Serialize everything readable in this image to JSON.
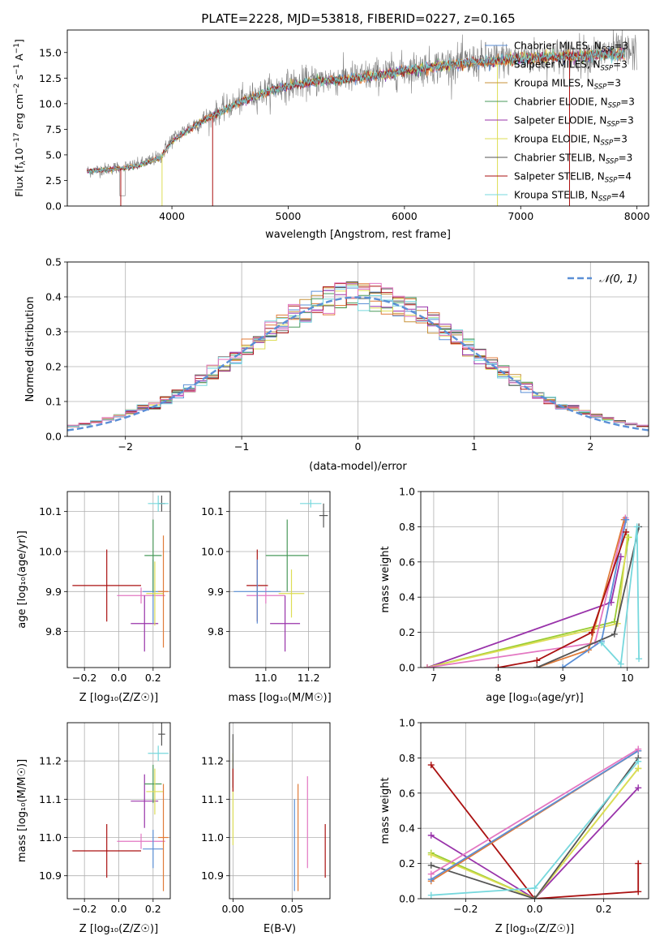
{
  "figure_title": "PLATE=2228, MJD=53818, FIBERID=0227, z=0.165",
  "colors": {
    "chabrier_miles": "#5b8fd6",
    "salpeter_miles": "#e07b39",
    "kroupa_miles": "#e07b39",
    "chabrier_elodie": "#4a9a5b",
    "salpeter_elodie": "#9933aa",
    "kroupa_elodie": "#dddd55",
    "chabrier_stelib": "#555555",
    "salpeter_stelib": "#aa1111",
    "kroupa_stelib": "#77d8dd",
    "data": "#808080",
    "extra_pink": "#e377c2",
    "extra_olive": "#9acd32"
  },
  "chart_data": [
    {
      "id": "spectrum",
      "type": "line",
      "xlabel": "wavelength [Angstrom, rest frame]",
      "ylabel": "Flux [f_λ 10^-17 erg cm^-2 s^-1 A^-1]",
      "xlim": [
        3100,
        8100
      ],
      "ylim": [
        0,
        17.2
      ],
      "xticks": [
        4000,
        5000,
        6000,
        7000,
        8000
      ],
      "yticks": [
        0.0,
        2.5,
        5.0,
        7.5,
        10.0,
        12.5,
        15.0
      ],
      "grid": false,
      "legend_position": "top-right",
      "legend": [
        {
          "label": "Chabrier MILES, N",
          "sub": "SSP",
          "tail": "=3",
          "color": "#5b8fd6"
        },
        {
          "label": "Salpeter MILES, N",
          "sub": "SSP",
          "tail": "=3",
          "color": "#e07b39"
        },
        {
          "label": "Kroupa MILES, N",
          "sub": "SSP",
          "tail": "=3",
          "color": "#c8923a"
        },
        {
          "label": "Chabrier ELODIE, N",
          "sub": "SSP",
          "tail": "=3",
          "color": "#4a9a5b"
        },
        {
          "label": "Salpeter ELODIE, N",
          "sub": "SSP",
          "tail": "=3",
          "color": "#9933aa"
        },
        {
          "label": "Kroupa ELODIE, N",
          "sub": "SSP",
          "tail": "=3",
          "color": "#dddd55"
        },
        {
          "label": "Chabrier STELIB, N",
          "sub": "SSP",
          "tail": "=3",
          "color": "#555555"
        },
        {
          "label": "Salpeter STELIB, N",
          "sub": "SSP",
          "tail": "=4",
          "color": "#aa1111"
        },
        {
          "label": "Kroupa STELIB, N",
          "sub": "SSP",
          "tail": "=4",
          "color": "#77d8dd"
        }
      ],
      "series": [
        {
          "role": "data",
          "x_range": [
            3270,
            8000
          ],
          "continuum": [
            [
              3270,
              3.4
            ],
            [
              3500,
              3.7
            ],
            [
              3700,
              4.0
            ],
            [
              3900,
              4.8
            ],
            [
              4000,
              6.5
            ],
            [
              4200,
              8.0
            ],
            [
              4400,
              9.2
            ],
            [
              4600,
              10.3
            ],
            [
              4800,
              11.2
            ],
            [
              5000,
              11.8
            ],
            [
              5200,
              12.2
            ],
            [
              5400,
              12.4
            ],
            [
              5600,
              12.6
            ],
            [
              5800,
              12.9
            ],
            [
              6000,
              13.3
            ],
            [
              6200,
              13.6
            ],
            [
              6400,
              13.9
            ],
            [
              6600,
              14.1
            ],
            [
              6800,
              14.3
            ],
            [
              7000,
              14.5
            ],
            [
              7200,
              14.6
            ],
            [
              7400,
              14.6
            ],
            [
              7600,
              14.8
            ],
            [
              7800,
              15.0
            ],
            [
              8000,
              15.0
            ]
          ]
        },
        {
          "role": "model",
          "x_range": [
            3270,
            7900
          ],
          "continuum": [
            [
              3270,
              3.4
            ],
            [
              3500,
              3.6
            ],
            [
              3700,
              3.9
            ],
            [
              3900,
              4.7
            ],
            [
              4000,
              6.3
            ],
            [
              4200,
              7.9
            ],
            [
              4400,
              9.1
            ],
            [
              4600,
              10.2
            ],
            [
              4800,
              11.1
            ],
            [
              5000,
              11.7
            ],
            [
              5200,
              12.1
            ],
            [
              5400,
              12.3
            ],
            [
              5600,
              12.5
            ],
            [
              5800,
              12.8
            ],
            [
              6000,
              13.2
            ],
            [
              6200,
              13.5
            ],
            [
              6400,
              13.8
            ],
            [
              6600,
              14.0
            ],
            [
              6800,
              14.2
            ],
            [
              7000,
              14.4
            ],
            [
              7200,
              14.5
            ],
            [
              7400,
              14.6
            ],
            [
              7600,
              14.7
            ],
            [
              7900,
              14.9
            ]
          ]
        }
      ]
    },
    {
      "id": "residual-histogram",
      "type": "histogram",
      "xlabel": "(data-model)/error",
      "ylabel": "Normed distribution",
      "xlim": [
        -2.5,
        2.5
      ],
      "ylim": [
        0,
        0.5
      ],
      "xticks": [
        -2,
        -1,
        0,
        1,
        2
      ],
      "yticks": [
        0.0,
        0.1,
        0.2,
        0.3,
        0.4,
        0.5
      ],
      "grid": true,
      "legend_position": "top-right",
      "legend_label": "𝒩(0, 1)",
      "bin_width": 0.1,
      "curve": {
        "name": "N(0,1)",
        "mean": 0,
        "sigma": 1
      }
    },
    {
      "id": "age-vs-Z",
      "type": "errorbar",
      "xlabel": "Z [log₁₀(Z/Z☉)]",
      "ylabel": "age  [log₁₀(age/yr)]",
      "xlim": [
        -0.3,
        0.3
      ],
      "ylim": [
        9.71,
        10.15
      ],
      "xticks": [
        -0.2,
        0.0,
        0.2
      ],
      "yticks": [
        9.8,
        9.9,
        10.0,
        10.1
      ],
      "grid": true,
      "points": [
        {
          "x": -0.07,
          "xerr": 0.2,
          "y": 9.915,
          "yerr": 0.09,
          "color": "#aa1111"
        },
        {
          "x": 0.13,
          "xerr": 0.14,
          "y": 9.89,
          "yerr": 0.02,
          "color": "#e377c2"
        },
        {
          "x": 0.15,
          "xerr": 0.08,
          "y": 9.82,
          "yerr": 0.07,
          "color": "#9933aa"
        },
        {
          "x": 0.2,
          "xerr": 0.06,
          "y": 9.9,
          "yerr": 0.08,
          "color": "#5b8fd6"
        },
        {
          "x": 0.2,
          "xerr": 0.05,
          "y": 9.99,
          "yerr": 0.09,
          "color": "#4a9a5b"
        },
        {
          "x": 0.21,
          "xerr": 0.05,
          "y": 9.895,
          "yerr": 0.08,
          "color": "#dddd55"
        },
        {
          "x": 0.26,
          "xerr": 0.03,
          "y": 9.9,
          "yerr": 0.14,
          "color": "#e07b39"
        },
        {
          "x": 0.25,
          "xerr": 0.02,
          "y": 10.12,
          "yerr": 0.02,
          "color": "#555555"
        },
        {
          "x": 0.23,
          "xerr": 0.06,
          "y": 10.12,
          "yerr": 0.02,
          "color": "#77d8dd"
        }
      ]
    },
    {
      "id": "age-vs-mass",
      "type": "errorbar",
      "xlabel": "mass [log₁₀(M/M☉)]",
      "ylabel": "",
      "xlim": [
        10.83,
        11.3
      ],
      "ylim": [
        9.71,
        10.15
      ],
      "xticks": [
        11.0,
        11.2
      ],
      "yticks": [
        9.8,
        9.9,
        10.0,
        10.1
      ],
      "grid": true,
      "points": [
        {
          "x": 10.96,
          "xerr": 0.05,
          "y": 9.915,
          "yerr": 0.09,
          "color": "#aa1111"
        },
        {
          "x": 11.0,
          "xerr": 0.09,
          "y": 9.89,
          "yerr": 0.02,
          "color": "#e377c2"
        },
        {
          "x": 11.09,
          "xerr": 0.07,
          "y": 9.82,
          "yerr": 0.07,
          "color": "#9933aa"
        },
        {
          "x": 10.96,
          "xerr": 0.11,
          "y": 9.9,
          "yerr": 0.08,
          "color": "#5b8fd6"
        },
        {
          "x": 11.1,
          "xerr": 0.1,
          "y": 9.99,
          "yerr": 0.09,
          "color": "#4a9a5b"
        },
        {
          "x": 11.12,
          "xerr": 0.06,
          "y": 9.895,
          "yerr": 0.06,
          "color": "#dddd55"
        },
        {
          "x": 11.27,
          "xerr": 0.02,
          "y": 10.09,
          "yerr": 0.03,
          "color": "#555555"
        },
        {
          "x": 11.21,
          "xerr": 0.05,
          "y": 10.12,
          "yerr": 0.01,
          "color": "#77d8dd"
        }
      ]
    },
    {
      "id": "weight-vs-age",
      "type": "line",
      "xlabel": "age  [log₁₀(age/yr)]",
      "ylabel": "mass weight",
      "xlim": [
        6.8,
        10.33
      ],
      "ylim": [
        0,
        1.0
      ],
      "xticks": [
        7,
        8,
        9,
        10
      ],
      "yticks": [
        0.0,
        0.2,
        0.4,
        0.6,
        0.8,
        1.0
      ],
      "grid": true,
      "series": [
        {
          "color": "#9933aa",
          "points": [
            [
              6.9,
              0.0
            ],
            [
              9.75,
              0.37
            ],
            [
              9.9,
              0.63
            ]
          ]
        },
        {
          "color": "#9acd32",
          "points": [
            [
              6.9,
              0.0
            ],
            [
              9.8,
              0.26
            ],
            [
              10.02,
              0.74
            ]
          ]
        },
        {
          "color": "#dddd55",
          "points": [
            [
              6.9,
              0.0
            ],
            [
              9.85,
              0.25
            ],
            [
              10.0,
              0.74
            ]
          ]
        },
        {
          "color": "#e377c2",
          "points": [
            [
              6.9,
              0.0
            ],
            [
              9.5,
              0.14
            ],
            [
              9.97,
              0.85
            ]
          ]
        },
        {
          "color": "#e07b39",
          "points": [
            [
              8.6,
              0.0
            ],
            [
              9.4,
              0.1
            ],
            [
              9.95,
              0.84
            ]
          ]
        },
        {
          "color": "#5b8fd6",
          "points": [
            [
              9.0,
              0.0
            ],
            [
              9.6,
              0.15
            ],
            [
              9.98,
              0.84
            ]
          ]
        },
        {
          "color": "#aa1111",
          "points": [
            [
              8.0,
              0.0
            ],
            [
              8.6,
              0.04
            ],
            [
              9.45,
              0.2
            ],
            [
              9.98,
              0.77
            ]
          ]
        },
        {
          "color": "#555555",
          "points": [
            [
              8.6,
              0.0
            ],
            [
              9.8,
              0.19
            ],
            [
              10.18,
              0.8
            ]
          ]
        },
        {
          "color": "#77d8dd",
          "points": [
            [
              9.6,
              0.14
            ],
            [
              9.9,
              0.02
            ],
            [
              10.15,
              0.8
            ],
            [
              10.18,
              0.05
            ]
          ]
        }
      ]
    },
    {
      "id": "mass-vs-Z",
      "type": "errorbar",
      "xlabel": "Z [log₁₀(Z/Z☉)]",
      "ylabel": "mass [log₁₀(M/M☉)]",
      "xlim": [
        -0.3,
        0.3
      ],
      "ylim": [
        10.84,
        11.3
      ],
      "xticks": [
        -0.2,
        0.0,
        0.2
      ],
      "yticks": [
        10.9,
        11.0,
        11.1,
        11.2
      ],
      "grid": true,
      "points": [
        {
          "x": -0.07,
          "xerr": 0.2,
          "y": 10.965,
          "yerr": 0.07,
          "color": "#aa1111"
        },
        {
          "x": 0.13,
          "xerr": 0.14,
          "y": 10.99,
          "yerr": 0.02,
          "color": "#e377c2"
        },
        {
          "x": 0.15,
          "xerr": 0.08,
          "y": 11.095,
          "yerr": 0.07,
          "color": "#9933aa"
        },
        {
          "x": 0.2,
          "xerr": 0.06,
          "y": 10.97,
          "yerr": 0.05,
          "color": "#5b8fd6"
        },
        {
          "x": 0.2,
          "xerr": 0.05,
          "y": 11.14,
          "yerr": 0.05,
          "color": "#4a9a5b"
        },
        {
          "x": 0.21,
          "xerr": 0.05,
          "y": 11.12,
          "yerr": 0.06,
          "color": "#dddd55"
        },
        {
          "x": 0.26,
          "xerr": 0.03,
          "y": 11.0,
          "yerr": 0.14,
          "color": "#e07b39"
        },
        {
          "x": 0.25,
          "xerr": 0.02,
          "y": 11.27,
          "yerr": 0.03,
          "color": "#555555"
        },
        {
          "x": 0.23,
          "xerr": 0.06,
          "y": 11.22,
          "yerr": 0.02,
          "color": "#77d8dd"
        }
      ]
    },
    {
      "id": "mass-vs-ebv",
      "type": "errorbar",
      "xlabel": "E(B-V)",
      "ylabel": "",
      "xlim": [
        -0.003,
        0.082
      ],
      "ylim": [
        10.84,
        11.3
      ],
      "xticks": [
        0.0,
        0.05
      ],
      "yticks": [
        10.9,
        11.0,
        11.1,
        11.2
      ],
      "grid": true,
      "points": [
        {
          "x": 0.0,
          "xerr": 0,
          "y": 11.1,
          "yerr": 0.12,
          "color": "#dddd55"
        },
        {
          "x": 0.0,
          "xerr": 0,
          "y": 11.2,
          "yerr": 0.07,
          "color": "#555555"
        },
        {
          "x": 0.0,
          "xerr": 0,
          "y": 11.15,
          "yerr": 0.03,
          "color": "#aa1111"
        },
        {
          "x": 0.052,
          "xerr": 0,
          "y": 10.98,
          "yerr": 0.12,
          "color": "#5b8fd6"
        },
        {
          "x": 0.055,
          "xerr": 0,
          "y": 11.0,
          "yerr": 0.14,
          "color": "#e07b39"
        },
        {
          "x": 0.063,
          "xerr": 0,
          "y": 11.04,
          "yerr": 0.12,
          "color": "#e377c2"
        },
        {
          "x": 0.078,
          "xerr": 0,
          "y": 10.965,
          "yerr": 0.07,
          "color": "#aa1111"
        }
      ]
    },
    {
      "id": "weight-vs-Z",
      "type": "line",
      "xlabel": "Z [log₁₀(Z/Z☉)]",
      "ylabel": "mass weight",
      "xlim": [
        -0.33,
        0.33
      ],
      "ylim": [
        0,
        1.0
      ],
      "xticks": [
        -0.2,
        0.0,
        0.2
      ],
      "yticks": [
        0.0,
        0.2,
        0.4,
        0.6,
        0.8,
        1.0
      ],
      "grid": true,
      "series": [
        {
          "color": "#aa1111",
          "points": [
            [
              -0.3,
              0.76
            ],
            [
              0.0,
              0.0
            ],
            [
              0.3,
              0.04
            ],
            [
              0.3,
              0.2
            ]
          ]
        },
        {
          "color": "#9933aa",
          "points": [
            [
              -0.3,
              0.36
            ],
            [
              0.0,
              0.0
            ],
            [
              0.3,
              0.63
            ]
          ]
        },
        {
          "color": "#9acd32",
          "points": [
            [
              -0.3,
              0.26
            ],
            [
              0.0,
              0.0
            ],
            [
              0.3,
              0.74
            ]
          ]
        },
        {
          "color": "#dddd55",
          "points": [
            [
              -0.3,
              0.25
            ],
            [
              0.0,
              0.0
            ],
            [
              0.3,
              0.74
            ]
          ]
        },
        {
          "color": "#555555",
          "points": [
            [
              -0.3,
              0.19
            ],
            [
              0.0,
              0.0
            ],
            [
              0.3,
              0.8
            ]
          ]
        },
        {
          "color": "#e07b39",
          "points": [
            [
              -0.3,
              0.1
            ],
            [
              0.3,
              0.84
            ]
          ]
        },
        {
          "color": "#5b8fd6",
          "points": [
            [
              -0.3,
              0.11
            ],
            [
              0.3,
              0.84
            ]
          ]
        },
        {
          "color": "#e377c2",
          "points": [
            [
              -0.3,
              0.14
            ],
            [
              0.3,
              0.85
            ]
          ]
        },
        {
          "color": "#77d8dd",
          "points": [
            [
              -0.3,
              0.02
            ],
            [
              0.0,
              0.06
            ],
            [
              0.3,
              0.78
            ]
          ]
        }
      ]
    }
  ]
}
